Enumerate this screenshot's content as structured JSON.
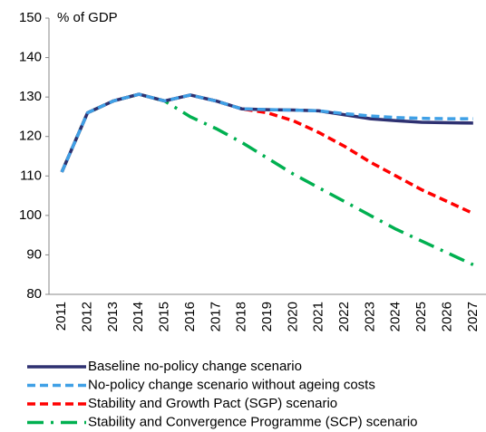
{
  "chart_data": {
    "type": "line",
    "y_label": "% of GDP",
    "categories": [
      "2011",
      "2012",
      "2013",
      "2014",
      "2015",
      "2016",
      "2017",
      "2018",
      "2019",
      "2020",
      "2021",
      "2022",
      "2023",
      "2024",
      "2025",
      "2026",
      "2027"
    ],
    "ylim": [
      80,
      150
    ],
    "yticks": [
      80,
      90,
      100,
      110,
      120,
      130,
      140,
      150
    ],
    "legend": "bottom",
    "series": [
      {
        "name": "Baseline no-policy change scenario",
        "color": "#2e3171",
        "style": "solid",
        "values": [
          111,
          126,
          129,
          130.7,
          129,
          130.5,
          129,
          127,
          126.8,
          126.7,
          126.5,
          125.5,
          124.5,
          124,
          123.6,
          123.5,
          123.4
        ]
      },
      {
        "name": "No-policy change scenario without ageing costs",
        "color": "#3fa0e6",
        "style": "dashed",
        "values": [
          111,
          126,
          129,
          130.7,
          129,
          130.5,
          129,
          127,
          126.8,
          126.7,
          126.5,
          125.8,
          125.2,
          124.8,
          124.6,
          124.5,
          124.5
        ]
      },
      {
        "name": "Stability and Growth Pact (SGP) scenario",
        "color": "#ff0000",
        "style": "dashed",
        "values": [
          111,
          126,
          129,
          130.7,
          129,
          130.5,
          129,
          127,
          126,
          124,
          121,
          117.5,
          113.5,
          110,
          106.5,
          103.5,
          100.5
        ]
      },
      {
        "name": "Stability and Convergence Programme (SCP) scenario",
        "color": "#00b050",
        "style": "dashdot",
        "values": [
          111,
          126,
          129,
          130.7,
          129,
          125,
          122,
          118.5,
          114.5,
          110.5,
          107,
          103.5,
          100,
          96.5,
          93.5,
          90.5,
          87.5
        ]
      }
    ]
  }
}
